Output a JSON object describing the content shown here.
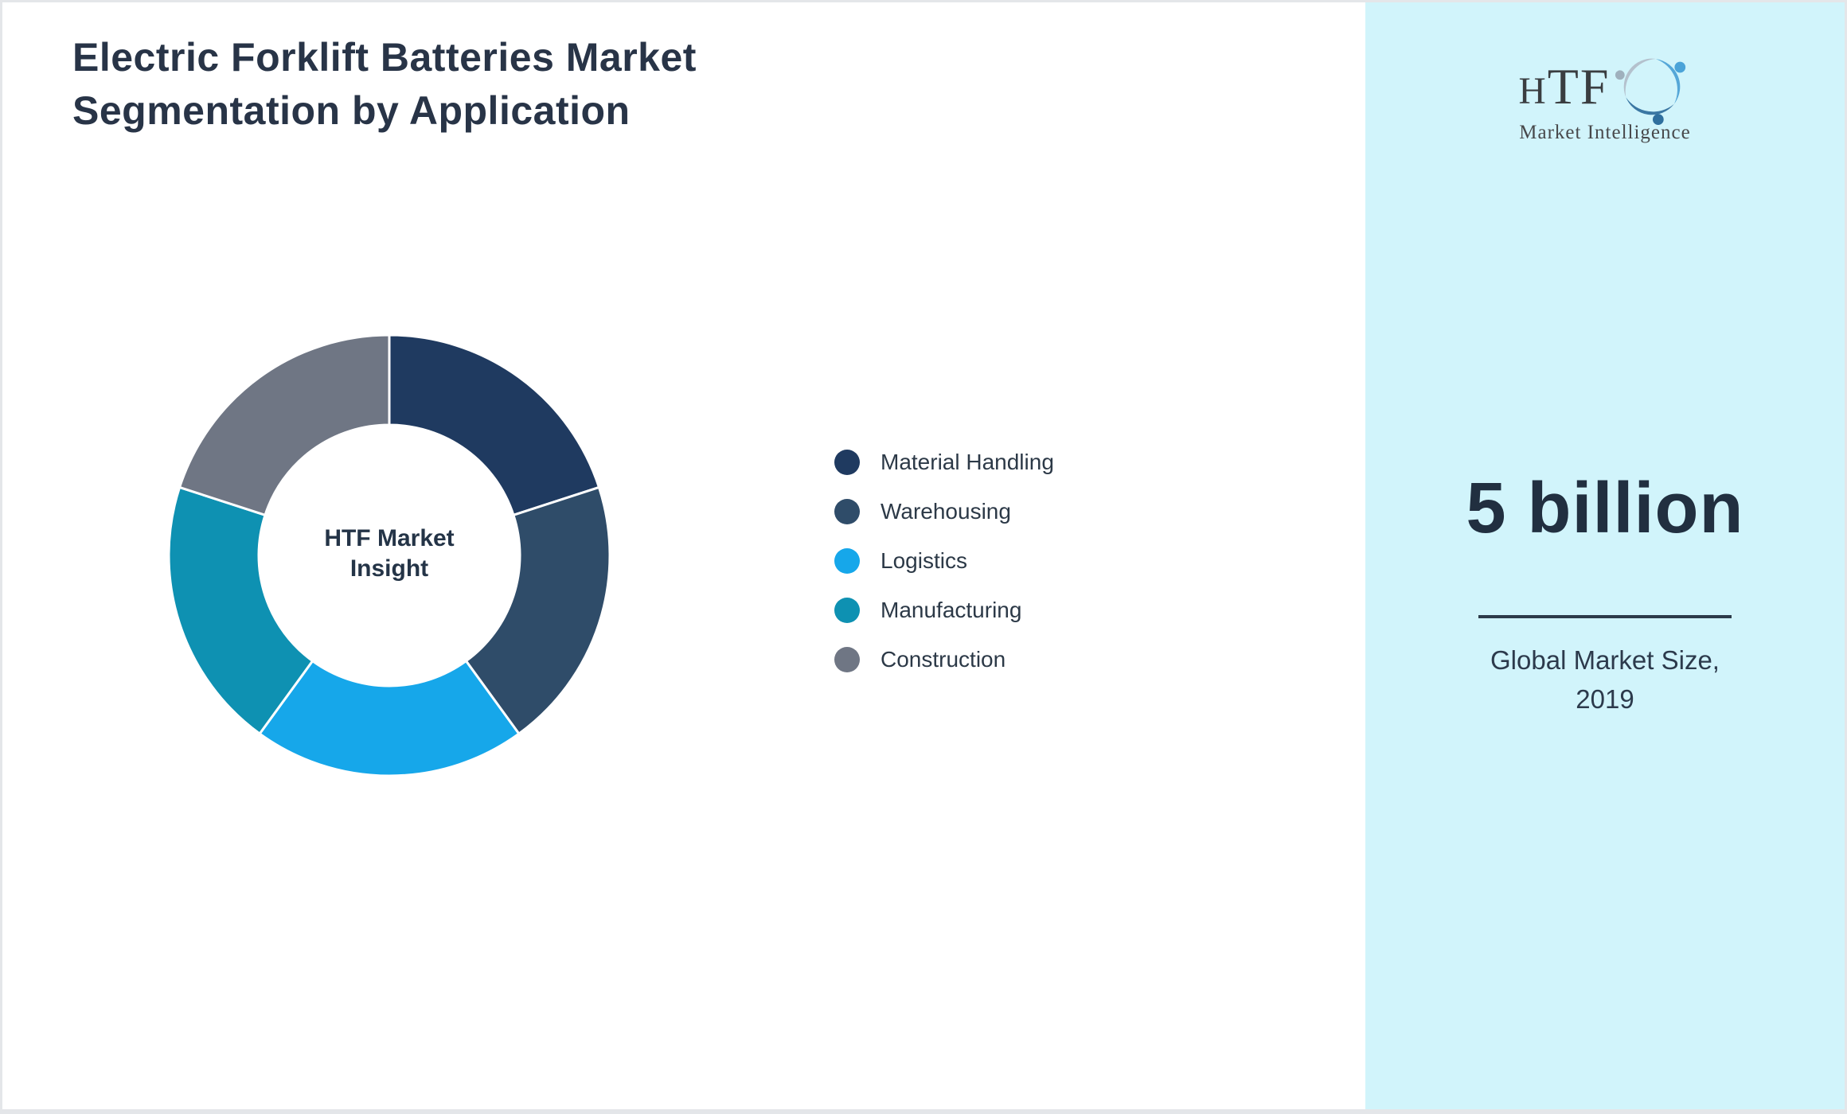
{
  "page": {
    "title": {
      "line1": "Electric Forklift Batteries Market",
      "line2": "Segmentation by Application"
    }
  },
  "chart_data": {
    "type": "pie",
    "variant": "donut",
    "title": "Electric Forklift Batteries Market Segmentation by Application",
    "center_label": "HTF Market Insight",
    "legend_position": "right",
    "start_angle_deg": 0,
    "direction": "clockwise",
    "unit": "percent share",
    "inner_outer_radius_ratio": 0.59,
    "slice_border_color": "#ffffff",
    "segments": [
      {
        "label": "Material Handling",
        "value": 20,
        "color": "#1f3a60"
      },
      {
        "label": "Warehousing",
        "value": 20,
        "color": "#2f4c69"
      },
      {
        "label": "Logistics",
        "value": 20,
        "color": "#16a7ea"
      },
      {
        "label": "Manufacturing",
        "value": 20,
        "color": "#0e91b2"
      },
      {
        "label": "Construction",
        "value": 20,
        "color": "#6f7684"
      }
    ]
  },
  "donut_center": {
    "line1": "HTF Market",
    "line2": "Insight"
  },
  "sidebar": {
    "background_color": "#d1f4fb",
    "logo": {
      "brand": "HTF",
      "tagline": "Market Intelligence",
      "icon_colors": {
        "top": "#55a7d8",
        "left": "#b4c1cd",
        "bottom": "#3b77a3"
      }
    },
    "market_size": {
      "value": "5 billion",
      "caption_line1": "Global Market Size,",
      "caption_line2": "2019"
    }
  }
}
